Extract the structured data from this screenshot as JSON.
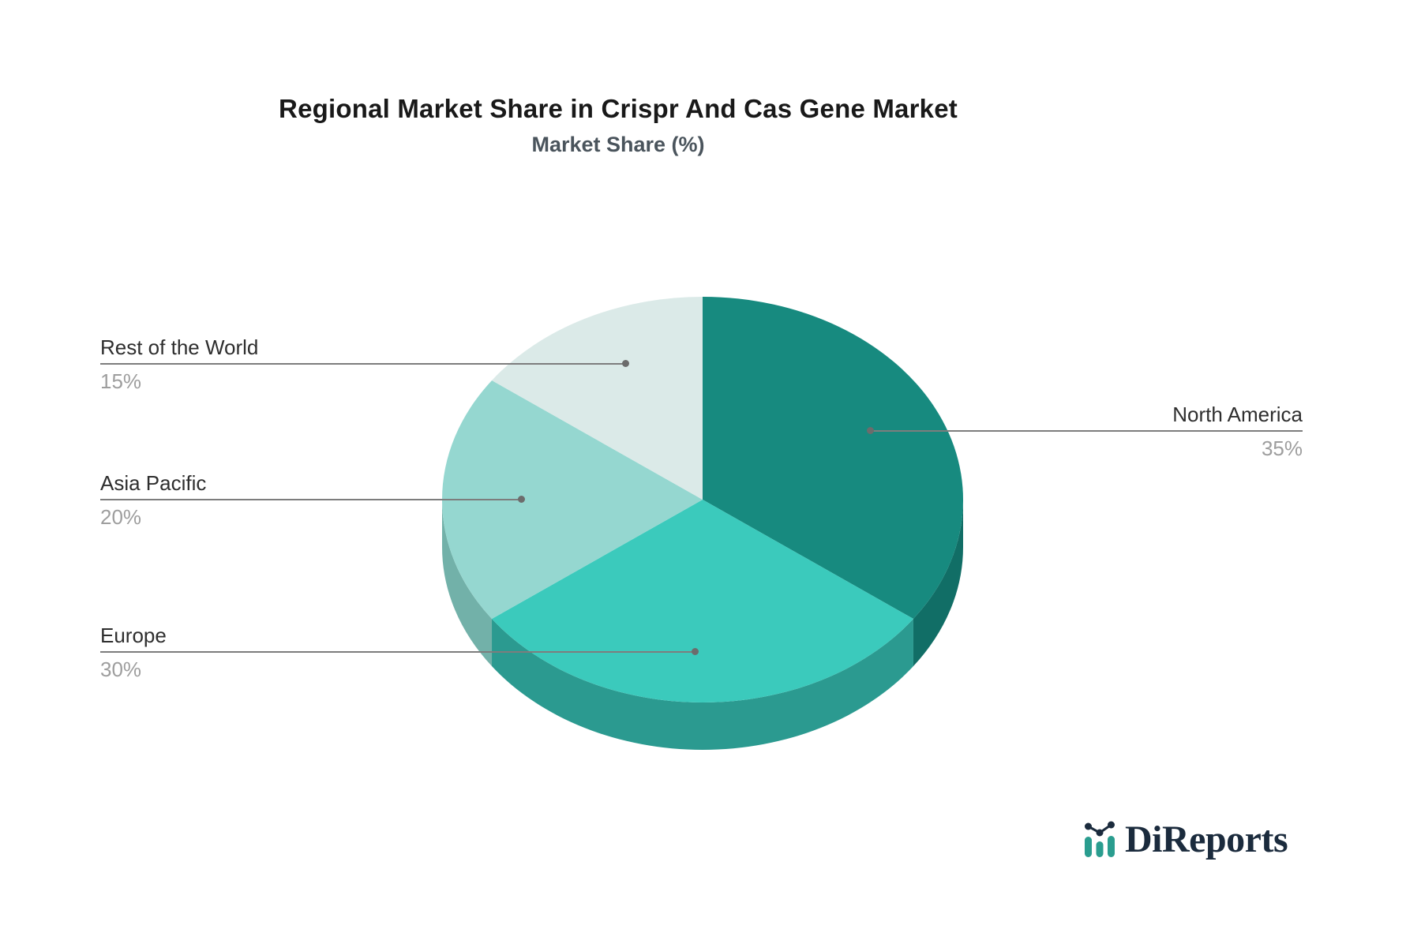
{
  "page": {
    "background": "#ffffff"
  },
  "chart_data": {
    "type": "pie",
    "title": "Regional Market Share in Crispr And Cas Gene Market",
    "subtitle": "Market Share (%)",
    "unit": "%",
    "start_angle_deg": 0,
    "direction": "clockwise",
    "effect": "3d-depth",
    "legend_position": "callout-leader-lines",
    "slices": [
      {
        "label": "North America",
        "value": 35,
        "value_label": "35%",
        "color": "#178a7f",
        "side_color": "#116e66"
      },
      {
        "label": "Europe",
        "value": 30,
        "value_label": "30%",
        "color": "#3bcabc",
        "side_color": "#2b9a90"
      },
      {
        "label": "Asia Pacific",
        "value": 20,
        "value_label": "20%",
        "color": "#95d7d0",
        "side_color": "#72b1a9"
      },
      {
        "label": "Rest of the World",
        "value": 15,
        "value_label": "15%",
        "color": "#dbeae8",
        "side_color": "#b9d0cd"
      }
    ],
    "leader_line_color": "#7d7d7d",
    "leader_dot_color": "#6c6c6c",
    "label_color": "#2e2e2e",
    "value_color": "#9e9e9e"
  },
  "branding": {
    "logo_text": "DiReports",
    "logo_text_color": "#1b2b3d",
    "logo_bar_color": "#2a9d8f",
    "logo_icon": "bar-and-line-chart-icon"
  }
}
